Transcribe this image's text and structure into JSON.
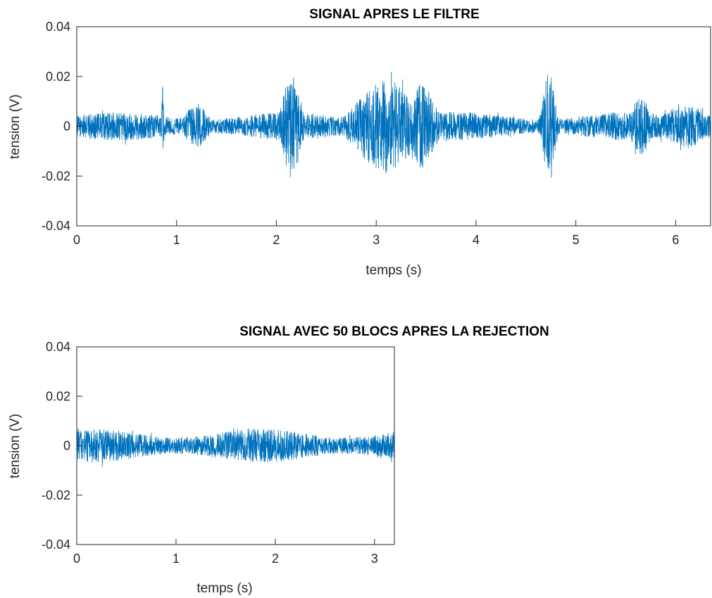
{
  "chart_data": [
    {
      "type": "line",
      "title": "SIGNAL APRES LE FILTRE",
      "xlabel": "temps (s)",
      "ylabel": "tension (V)",
      "xlim": [
        0,
        6.35
      ],
      "ylim": [
        -0.04,
        0.04
      ],
      "xticks": [
        0,
        1,
        2,
        3,
        4,
        5,
        6
      ],
      "xtick_labels": [
        "0",
        "1",
        "2",
        "3",
        "4",
        "5",
        "6"
      ],
      "yticks": [
        -0.04,
        -0.02,
        0,
        0.02,
        0.04
      ],
      "ytick_labels": [
        "-0.04",
        "-0.02",
        "0",
        "0.02",
        "0.04"
      ],
      "grid": false,
      "series": [
        {
          "color": "#0072BD",
          "t_end": 6.35,
          "noise_amplitude": 0.005,
          "events": [
            {
              "t": 0.86,
              "width": 0.01,
              "amplitude": 0.016
            },
            {
              "t": 1.2,
              "width": 0.1,
              "amplitude": 0.009
            },
            {
              "t": 2.15,
              "width": 0.08,
              "amplitude": 0.021
            },
            {
              "t": 3.1,
              "width": 0.25,
              "amplitude": 0.019
            },
            {
              "t": 3.45,
              "width": 0.12,
              "amplitude": 0.017
            },
            {
              "t": 4.73,
              "width": 0.05,
              "amplitude": 0.024
            },
            {
              "t": 5.65,
              "width": 0.08,
              "amplitude": 0.012
            },
            {
              "t": 6.1,
              "width": 0.2,
              "amplitude": 0.009
            }
          ]
        }
      ]
    },
    {
      "type": "line",
      "title": "SIGNAL AVEC 50 BLOCS APRES LA REJECTION",
      "xlabel": "temps (s)",
      "ylabel": "tension (V)",
      "xlim": [
        0,
        3.2
      ],
      "ylim": [
        -0.04,
        0.04
      ],
      "xticks": [
        0,
        1,
        2,
        3
      ],
      "xtick_labels": [
        "0",
        "1",
        "2",
        "3"
      ],
      "yticks": [
        -0.04,
        -0.02,
        0,
        0.02,
        0.04
      ],
      "ytick_labels": [
        "-0.04",
        "-0.02",
        "0",
        "0.02",
        "0.04"
      ],
      "grid": false,
      "series": [
        {
          "color": "#0072BD",
          "t_end": 3.2,
          "noise_amplitude": 0.006,
          "events": []
        }
      ]
    }
  ]
}
